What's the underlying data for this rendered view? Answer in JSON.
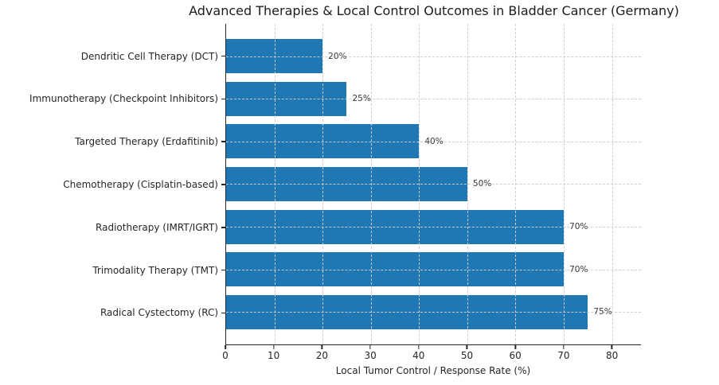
{
  "chart_data": {
    "type": "bar",
    "orientation": "horizontal",
    "title": "Advanced Therapies & Local Control Outcomes in Bladder Cancer (Germany)",
    "xlabel": "Local Tumor Control / Response Rate (%)",
    "categories": [
      "Dendritic Cell Therapy (DCT)",
      "Immunotherapy (Checkpoint Inhibitors)",
      "Targeted Therapy (Erdafitinib)",
      "Chemotherapy (Cisplatin-based)",
      "Radiotherapy (IMRT/IGRT)",
      "Trimodality Therapy (TMT)",
      "Radical Cystectomy (RC)"
    ],
    "values": [
      20,
      25,
      40,
      50,
      70,
      70,
      75
    ],
    "value_labels": [
      "20%",
      "25%",
      "40%",
      "50%",
      "70%",
      "70%",
      "75%"
    ],
    "xticks": [
      0,
      10,
      20,
      30,
      40,
      50,
      60,
      70,
      80
    ],
    "xlim": [
      0,
      86
    ],
    "grid": {
      "visible": true,
      "style": "dashed",
      "axes": "both",
      "drawn_over_bars": true
    },
    "legend": {
      "visible": false
    },
    "bar_color": "#1f77b4",
    "background_color": "#ffffff",
    "text_color": "#262626",
    "grid_color": "#cccccc"
  }
}
